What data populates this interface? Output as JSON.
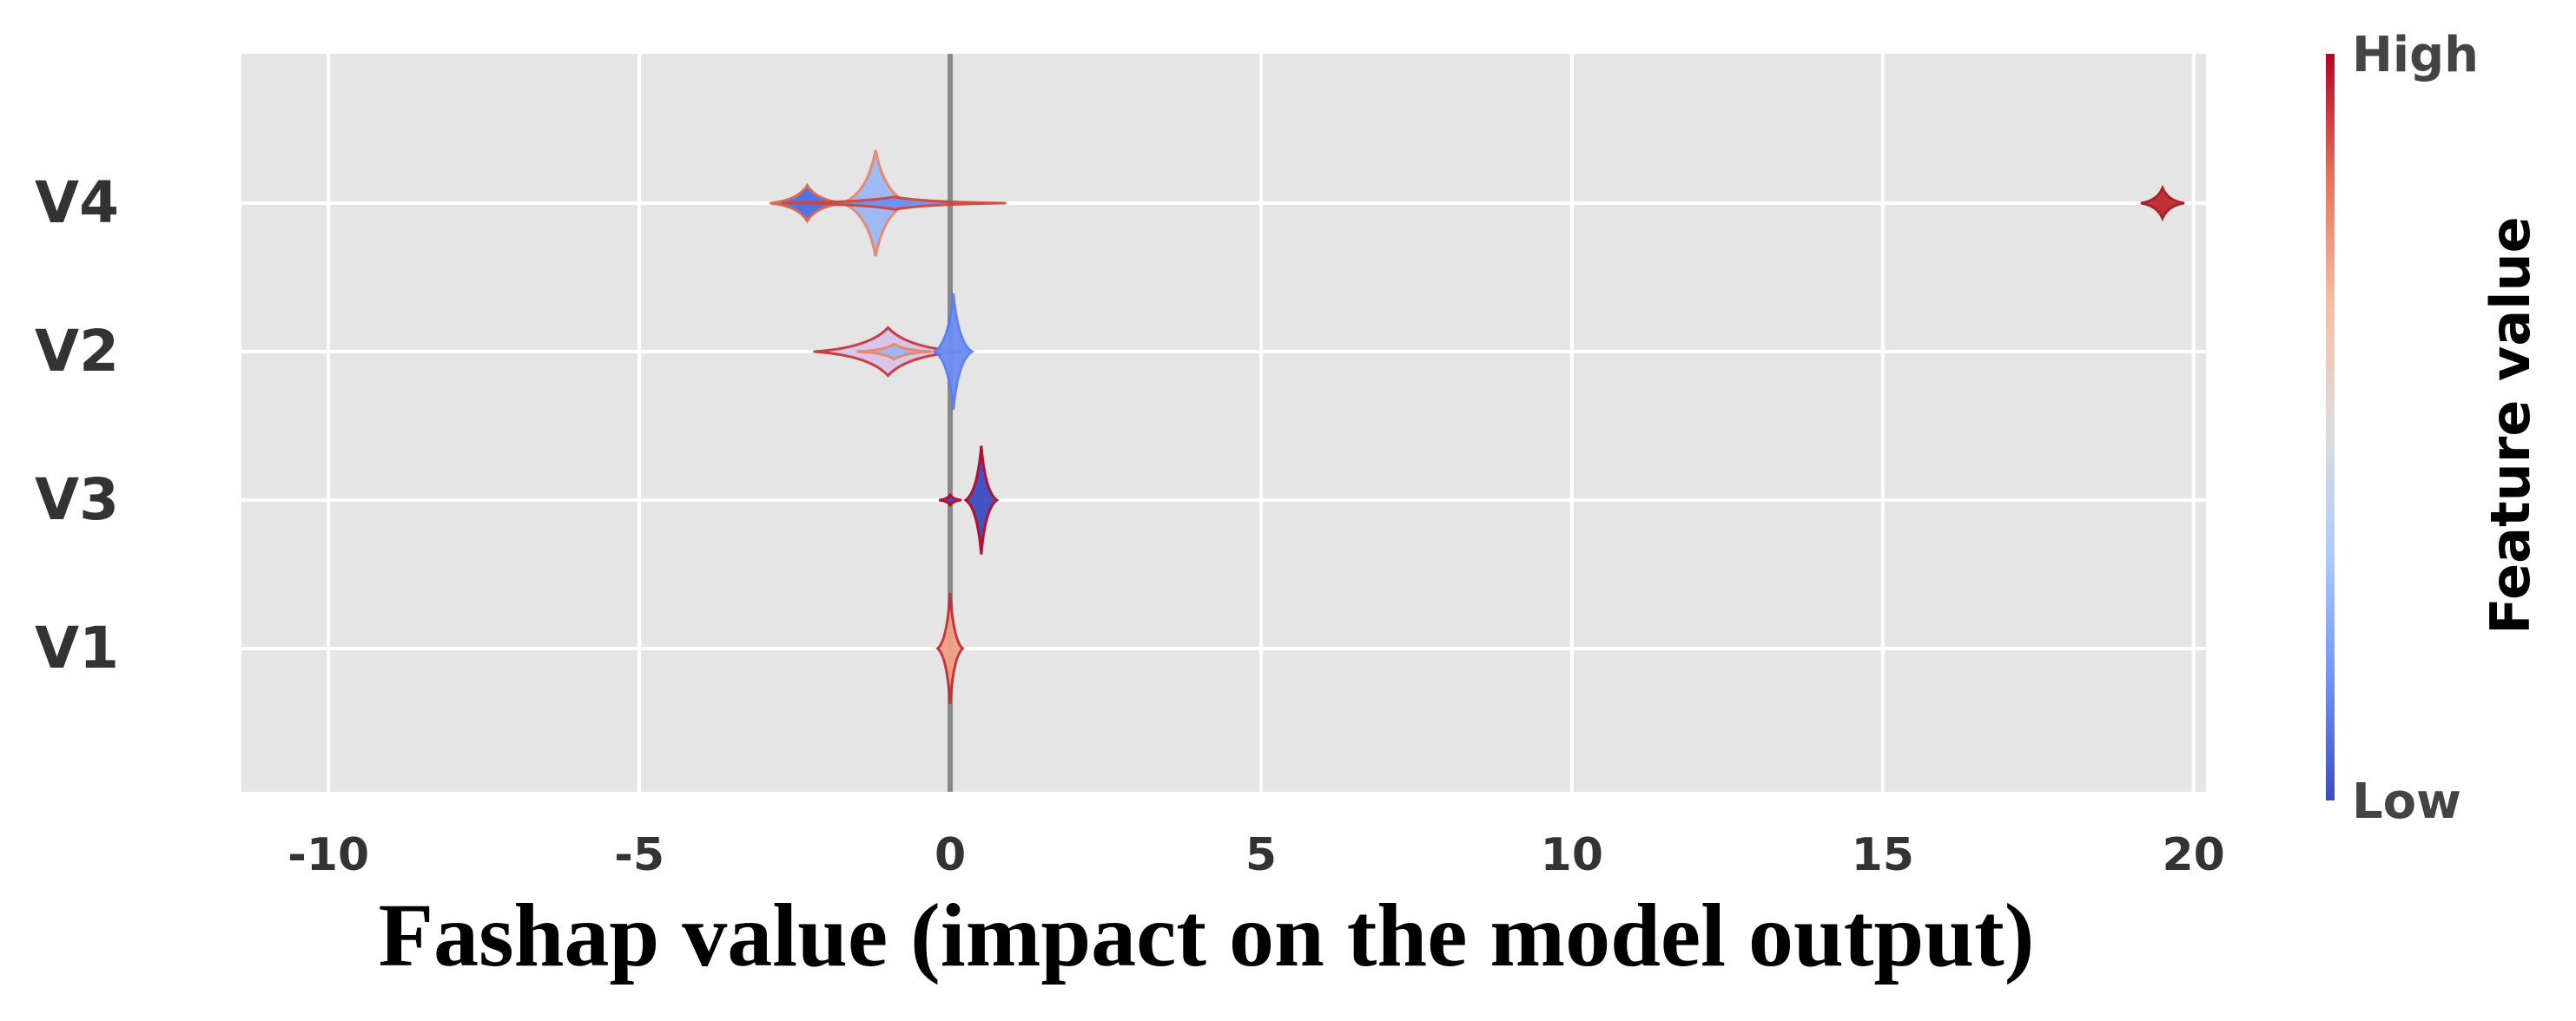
{
  "chart_data": {
    "type": "violin",
    "xlabel": "Fashap value (impact on the model output)",
    "ylabel": "",
    "xlim": [
      -11.4,
      20.2
    ],
    "xticks": [
      -10,
      -5,
      0,
      5,
      10,
      15,
      20
    ],
    "xtick_labels": [
      "-10",
      "-5",
      "0",
      "5",
      "10",
      "15",
      "20"
    ],
    "grid": true,
    "background": "#e5e5e5",
    "features": [
      {
        "name": "V4",
        "lobes": [
          {
            "center": -2.3,
            "half_width": 0.6,
            "height": 0.14,
            "color": "#4a6fe3",
            "edge": "#d8644d"
          },
          {
            "center": -1.2,
            "half_width": 0.55,
            "height": 0.42,
            "color": "#9bb8f5",
            "edge": "#e8866a"
          },
          {
            "center": -0.9,
            "half_width": 1.8,
            "height": 0.05,
            "color": "#6f8ef0",
            "edge": "#cf453c"
          },
          {
            "center": 19.5,
            "half_width": 0.35,
            "height": 0.12,
            "color": "#c0282d",
            "edge": "#a01a26"
          }
        ]
      },
      {
        "name": "V2",
        "lobes": [
          {
            "center": -1.0,
            "half_width": 1.2,
            "height": 0.19,
            "color": "#d9c4e8",
            "edge": "#c9353a"
          },
          {
            "center": -0.9,
            "half_width": 0.6,
            "height": 0.06,
            "color": "#9bb8f5",
            "edge": "#e8866a"
          },
          {
            "center": 0.05,
            "half_width": 0.3,
            "height": 0.46,
            "color": "#6a8ef5",
            "edge": "#5b7cf0"
          }
        ]
      },
      {
        "name": "V3",
        "lobes": [
          {
            "center": 0.0,
            "half_width": 0.18,
            "height": 0.04,
            "color": "#3b4cc0",
            "edge": "#b40426"
          },
          {
            "center": 0.5,
            "half_width": 0.25,
            "height": 0.43,
            "color": "#3b4cc0",
            "edge": "#b40426"
          }
        ]
      },
      {
        "name": "V1",
        "lobes": [
          {
            "center": 0.0,
            "half_width": 0.2,
            "height": 0.44,
            "color": "#f0a285",
            "edge": "#c32d34"
          }
        ]
      }
    ],
    "colorbar": {
      "title": "Feature value",
      "high_label": "High",
      "low_label": "Low",
      "colors": [
        "#3b4cc0",
        "#7396f5",
        "#b0cbfc",
        "#dddcdc",
        "#f6bea3",
        "#e6735b",
        "#b40426"
      ]
    }
  }
}
